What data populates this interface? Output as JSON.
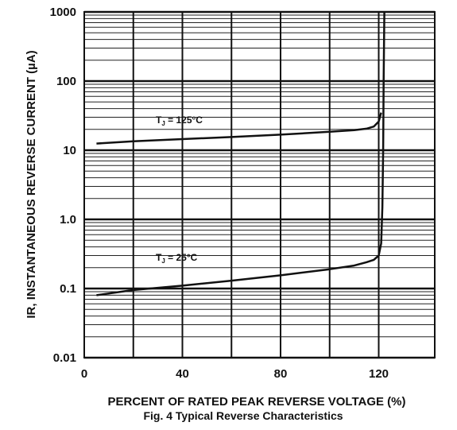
{
  "chart_data": {
    "type": "line",
    "xlabel": "PERCENT OF RATED PEAK REVERSE VOLTAGE (%)",
    "ylabel": "IR, INSTANTANEOUS REVERSE CURRENT (µA)",
    "caption": "Fig. 4  Typical Reverse Characteristics",
    "xlim": [
      0,
      140
    ],
    "ylim": [
      0.01,
      1000
    ],
    "yscale": "log",
    "grid": true,
    "x_ticks": [
      0,
      40,
      80,
      120
    ],
    "x_tick_labels": [
      "0",
      "40",
      "80",
      "120"
    ],
    "y_ticks": [
      0.01,
      0.1,
      1,
      10,
      100,
      1000
    ],
    "y_tick_labels": [
      "0.01",
      "0.1",
      "1.0",
      "10",
      "100",
      "1000"
    ],
    "series": [
      {
        "name_main": "T",
        "name_sub": "J",
        "name_rest": " = 125°C",
        "x": [
          5,
          20,
          40,
          60,
          80,
          100,
          110,
          115,
          118,
          120,
          121
        ],
        "y": [
          12.5,
          13.5,
          14.5,
          15.5,
          16.8,
          18.5,
          19.5,
          20.5,
          22,
          26,
          35
        ]
      },
      {
        "name_main": "T",
        "name_sub": "J",
        "name_rest": " = 25°C",
        "x": [
          5,
          20,
          40,
          60,
          80,
          100,
          110,
          115,
          118,
          120,
          121,
          121.5,
          121.8,
          122,
          122.3
        ],
        "y": [
          0.08,
          0.095,
          0.11,
          0.13,
          0.155,
          0.19,
          0.215,
          0.24,
          0.26,
          0.3,
          0.45,
          1.5,
          10,
          100,
          1000
        ]
      }
    ]
  }
}
